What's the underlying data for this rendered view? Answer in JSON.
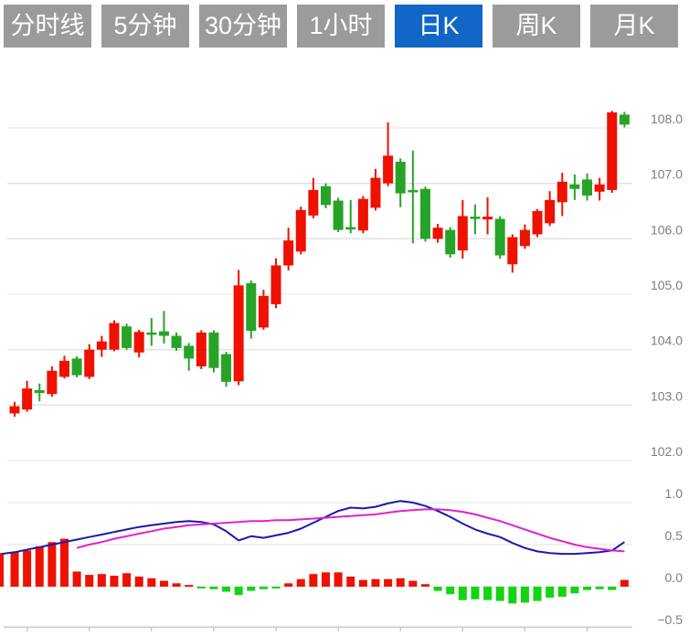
{
  "tabs": {
    "active_color": "#1266c6",
    "inactive_color": "#9b9b9b",
    "items": [
      {
        "label": "分时线",
        "active": false
      },
      {
        "label": "5分钟",
        "active": false
      },
      {
        "label": "30分钟",
        "active": false
      },
      {
        "label": "1小时",
        "active": false
      },
      {
        "label": "日K",
        "active": true
      },
      {
        "label": "周K",
        "active": false
      },
      {
        "label": "月K",
        "active": false
      }
    ]
  },
  "chart_data": {
    "type": "candlestick",
    "panels": [
      "price",
      "macd"
    ],
    "legend": "none",
    "grid": true,
    "price_axis": {
      "side": "right",
      "tick_labels": [
        "108.0",
        "107.0",
        "106.0",
        "105.0",
        "104.0",
        "103.0",
        "102.0"
      ],
      "tick_values": [
        108,
        107,
        106,
        105,
        104,
        103,
        102
      ],
      "ylim": [
        101.7,
        108.4
      ]
    },
    "indicator_axis": {
      "side": "right",
      "tick_labels": [
        "1.0",
        "0.5",
        "0.0",
        "−0.5"
      ],
      "tick_values": [
        1.0,
        0.5,
        0.0,
        -0.5
      ],
      "ylim": [
        -0.55,
        1.1
      ]
    },
    "up_means": "close_above_open_red",
    "ohlc": [
      [
        102.85,
        103.06,
        102.79,
        102.98
      ],
      [
        102.92,
        103.44,
        102.88,
        103.3
      ],
      [
        103.27,
        103.39,
        103.07,
        103.22
      ],
      [
        103.2,
        103.7,
        103.15,
        103.62
      ],
      [
        103.51,
        103.89,
        103.48,
        103.8
      ],
      [
        103.84,
        103.88,
        103.5,
        103.54
      ],
      [
        103.51,
        104.1,
        103.47,
        104.0
      ],
      [
        104.0,
        104.25,
        103.87,
        104.15
      ],
      [
        104.0,
        104.53,
        103.97,
        104.48
      ],
      [
        104.42,
        104.47,
        104.0,
        104.03
      ],
      [
        103.95,
        104.36,
        103.86,
        104.32
      ],
      [
        104.31,
        104.57,
        104.07,
        104.28
      ],
      [
        104.33,
        104.7,
        104.11,
        104.25
      ],
      [
        104.25,
        104.31,
        103.98,
        104.03
      ],
      [
        104.07,
        104.12,
        103.62,
        103.84
      ],
      [
        103.7,
        104.35,
        103.65,
        104.31
      ],
      [
        104.31,
        104.35,
        103.59,
        103.67
      ],
      [
        103.92,
        103.96,
        103.33,
        103.42
      ],
      [
        103.43,
        105.44,
        103.36,
        105.16
      ],
      [
        105.2,
        105.25,
        104.2,
        104.34
      ],
      [
        104.4,
        105.08,
        104.36,
        104.97
      ],
      [
        104.82,
        105.65,
        104.75,
        105.52
      ],
      [
        105.52,
        106.2,
        105.43,
        105.97
      ],
      [
        105.77,
        106.58,
        105.72,
        106.52
      ],
      [
        106.42,
        107.1,
        106.37,
        106.88
      ],
      [
        106.95,
        107.0,
        106.55,
        106.61
      ],
      [
        106.69,
        106.74,
        106.12,
        106.16
      ],
      [
        106.21,
        106.7,
        106.1,
        106.18
      ],
      [
        106.15,
        106.77,
        106.1,
        106.72
      ],
      [
        106.56,
        107.26,
        106.51,
        107.1
      ],
      [
        107.0,
        108.1,
        106.95,
        107.5
      ],
      [
        107.39,
        107.45,
        106.57,
        106.82
      ],
      [
        106.88,
        107.59,
        105.92,
        106.84
      ],
      [
        106.9,
        106.94,
        105.95,
        106.0
      ],
      [
        106.0,
        106.27,
        105.93,
        106.2
      ],
      [
        106.16,
        106.21,
        105.66,
        105.72
      ],
      [
        105.79,
        106.7,
        105.64,
        106.41
      ],
      [
        106.4,
        106.62,
        106.08,
        106.36
      ],
      [
        106.35,
        106.75,
        106.08,
        106.4
      ],
      [
        106.36,
        106.41,
        105.64,
        105.7
      ],
      [
        105.54,
        106.08,
        105.39,
        106.03
      ],
      [
        105.87,
        106.26,
        105.82,
        106.16
      ],
      [
        106.08,
        106.54,
        106.03,
        106.5
      ],
      [
        106.28,
        106.86,
        106.23,
        106.7
      ],
      [
        106.66,
        107.19,
        106.41,
        107.03
      ],
      [
        106.98,
        107.16,
        106.7,
        106.9
      ],
      [
        107.07,
        107.18,
        106.69,
        106.78
      ],
      [
        106.85,
        107.1,
        106.69,
        106.98
      ],
      [
        106.88,
        108.31,
        106.83,
        108.28
      ],
      [
        108.24,
        108.29,
        108.01,
        108.06
      ]
    ],
    "macd": {
      "histogram": [
        0.41,
        0.43,
        0.48,
        0.53,
        0.57,
        0.18,
        0.14,
        0.15,
        0.13,
        0.16,
        0.12,
        0.1,
        0.07,
        0.04,
        0.02,
        -0.02,
        -0.03,
        -0.06,
        -0.1,
        -0.05,
        -0.03,
        -0.02,
        0.04,
        0.09,
        0.15,
        0.17,
        0.17,
        0.12,
        0.08,
        0.09,
        0.09,
        0.1,
        0.07,
        0.03,
        -0.05,
        -0.09,
        -0.16,
        -0.15,
        -0.16,
        -0.17,
        -0.2,
        -0.19,
        -0.17,
        -0.13,
        -0.12,
        -0.08,
        -0.04,
        -0.03,
        -0.04,
        0.08
      ],
      "dif": [
        0.41,
        0.44,
        0.47,
        0.5,
        0.53,
        0.56,
        0.59,
        0.62,
        0.65,
        0.68,
        0.71,
        0.73,
        0.75,
        0.77,
        0.78,
        0.77,
        0.74,
        0.66,
        0.55,
        0.6,
        0.58,
        0.61,
        0.64,
        0.69,
        0.76,
        0.83,
        0.9,
        0.94,
        0.93,
        0.95,
        0.99,
        1.02,
        1.0,
        0.96,
        0.9,
        0.83,
        0.75,
        0.68,
        0.63,
        0.59,
        0.52,
        0.46,
        0.42,
        0.4,
        0.39,
        0.39,
        0.4,
        0.41,
        0.43,
        0.53
      ],
      "dif_left_edge": 0.39,
      "dea_start_index": 5,
      "dea": [
        0.46,
        0.5,
        0.53,
        0.57,
        0.6,
        0.63,
        0.66,
        0.69,
        0.71,
        0.73,
        0.74,
        0.75,
        0.76,
        0.77,
        0.78,
        0.78,
        0.79,
        0.79,
        0.8,
        0.81,
        0.82,
        0.83,
        0.84,
        0.85,
        0.86,
        0.88,
        0.9,
        0.91,
        0.92,
        0.92,
        0.91,
        0.89,
        0.86,
        0.82,
        0.78,
        0.73,
        0.68,
        0.63,
        0.58,
        0.54,
        0.5,
        0.47,
        0.45,
        0.43,
        0.42
      ],
      "left_edge_partial_bar": 0.4
    },
    "colors": {
      "up": "#ee1100",
      "down": "#27a427",
      "hist_up": "#ee1100",
      "hist_down": "#13d413",
      "dif_line": "#1a1aae",
      "dea_line": "#e121ce",
      "grid": "#e3e3e3",
      "axis_line": "#c9c9c9",
      "axis_text": "#7d7d7d"
    }
  }
}
